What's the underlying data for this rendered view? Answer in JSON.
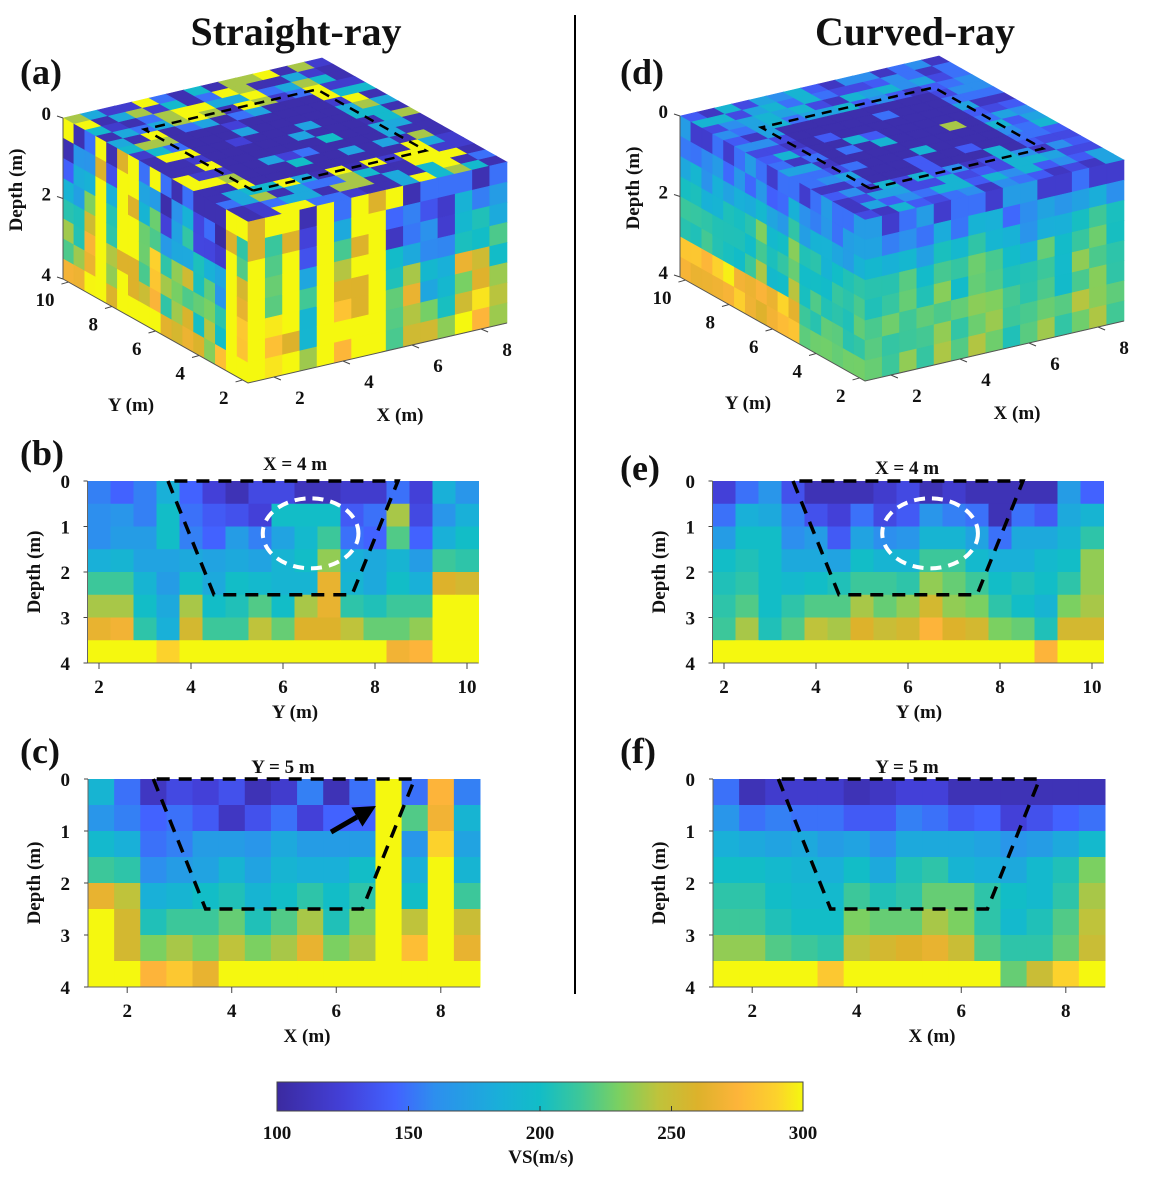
{
  "titles": {
    "left": "Straight-ray",
    "right": "Curved-ray"
  },
  "panel_labels": {
    "a": "(a)",
    "b": "(b)",
    "c": "(c)",
    "d": "(d)",
    "e": "(e)",
    "f": "(f)"
  },
  "colorbar": {
    "label": "VS(m/s)",
    "range": [
      100,
      300
    ],
    "ticks": [
      "100",
      "150",
      "200",
      "250",
      "300"
    ],
    "colors": [
      "#3b2aa0",
      "#4340d8",
      "#4262ff",
      "#2d8fee",
      "#19b0d8",
      "#12bdc7",
      "#3cc79a",
      "#7bd061",
      "#bfc33b",
      "#ddb22b",
      "#fdb43a",
      "#fcd22c",
      "#f5f80f"
    ],
    "color_values": [
      100,
      125,
      145,
      160,
      185,
      200,
      215,
      230,
      245,
      260,
      275,
      290,
      300
    ]
  },
  "chart_data": [
    {
      "id": "a",
      "type": "3d-volume",
      "method": "Straight-ray",
      "xlabel": "X (m)",
      "ylabel": "Y (m)",
      "zlabel": "Depth (m)",
      "x_ticks": [
        "2",
        "4",
        "6",
        "8"
      ],
      "y_ticks": [
        "2",
        "4",
        "6",
        "8",
        "10"
      ],
      "z_ticks": [
        "0",
        "2",
        "4"
      ],
      "xlim": [
        1.25,
        8.75
      ],
      "ylim": [
        1.75,
        10.25
      ],
      "zlim": [
        0,
        4
      ],
      "outline": {
        "x": [
          2.5,
          7.5
        ],
        "y": [
          3.5,
          8.5
        ]
      }
    },
    {
      "id": "b",
      "type": "heatmap",
      "title": "X = 4 m",
      "xlabel": "Y (m)",
      "ylabel": "Depth (m)",
      "x_ticks": [
        "2",
        "4",
        "6",
        "8",
        "10"
      ],
      "y_ticks": [
        "0",
        "1",
        "2",
        "3",
        "4"
      ],
      "xlim": [
        1.75,
        10.25
      ],
      "ylim": [
        0,
        4
      ],
      "cell": 0.5,
      "trapezoid": {
        "top": [
          3.5,
          8.5
        ],
        "bottom": [
          4.5,
          7.5
        ],
        "depth": 2.5
      },
      "ellipse": {
        "center": [
          6.6,
          1.15
        ],
        "radii": [
          1.04,
          0.77
        ]
      },
      "values": [
        [
          155,
          145,
          155,
          185,
          145,
          125,
          110,
          130,
          130,
          112,
          112,
          120,
          120,
          150,
          125,
          185,
          165
        ],
        [
          160,
          165,
          155,
          200,
          150,
          140,
          135,
          125,
          200,
          200,
          200,
          140,
          150,
          240,
          130,
          165,
          185
        ],
        [
          160,
          170,
          170,
          200,
          155,
          145,
          170,
          155,
          175,
          195,
          215,
          150,
          145,
          220,
          145,
          185,
          200
        ],
        [
          185,
          190,
          175,
          175,
          180,
          175,
          180,
          175,
          190,
          200,
          235,
          185,
          180,
          190,
          170,
          215,
          210
        ],
        [
          215,
          215,
          190,
          170,
          200,
          180,
          200,
          195,
          190,
          190,
          265,
          190,
          180,
          200,
          185,
          260,
          255
        ],
        [
          240,
          240,
          200,
          180,
          240,
          200,
          205,
          220,
          200,
          240,
          265,
          210,
          205,
          215,
          215,
          300,
          300
        ],
        [
          265,
          270,
          210,
          185,
          255,
          215,
          215,
          245,
          225,
          260,
          260,
          245,
          225,
          225,
          235,
          300,
          300
        ],
        [
          300,
          300,
          300,
          290,
          300,
          300,
          300,
          300,
          300,
          300,
          300,
          300,
          300,
          270,
          275,
          300,
          300
        ]
      ]
    },
    {
      "id": "c",
      "type": "heatmap",
      "title": "Y = 5 m",
      "xlabel": "X (m)",
      "ylabel": "Depth (m)",
      "x_ticks": [
        "2",
        "4",
        "6",
        "8"
      ],
      "y_ticks": [
        "0",
        "1",
        "2",
        "3",
        "4"
      ],
      "xlim": [
        1.25,
        8.75
      ],
      "ylim": [
        0,
        4
      ],
      "cell": 0.5,
      "trapezoid": {
        "top": [
          2.5,
          7.5
        ],
        "bottom": [
          3.5,
          6.5
        ],
        "depth": 2.5
      },
      "arrow": {
        "from": [
          5.9,
          1.02
        ],
        "to": [
          6.76,
          0.52
        ]
      },
      "values": [
        [
          190,
          150,
          115,
          130,
          125,
          135,
          110,
          120,
          155,
          110,
          150,
          300,
          150,
          275,
          155
        ],
        [
          165,
          155,
          145,
          150,
          140,
          115,
          135,
          150,
          125,
          145,
          145,
          300,
          220,
          270,
          190
        ],
        [
          195,
          185,
          150,
          155,
          170,
          170,
          165,
          180,
          170,
          170,
          170,
          300,
          165,
          290,
          175
        ],
        [
          215,
          210,
          160,
          170,
          175,
          190,
          175,
          190,
          185,
          185,
          200,
          300,
          185,
          300,
          190
        ],
        [
          265,
          245,
          185,
          190,
          200,
          205,
          190,
          200,
          210,
          200,
          210,
          300,
          200,
          300,
          215
        ],
        [
          300,
          255,
          205,
          215,
          215,
          225,
          205,
          220,
          240,
          205,
          230,
          300,
          245,
          300,
          250
        ],
        [
          300,
          255,
          230,
          240,
          230,
          245,
          230,
          240,
          265,
          230,
          240,
          300,
          280,
          300,
          265
        ],
        [
          300,
          300,
          275,
          285,
          265,
          300,
          300,
          300,
          300,
          300,
          300,
          300,
          300,
          300,
          300
        ]
      ]
    },
    {
      "id": "d",
      "type": "3d-volume",
      "method": "Curved-ray",
      "xlabel": "X (m)",
      "ylabel": "Y (m)",
      "zlabel": "Depth (m)",
      "x_ticks": [
        "2",
        "4",
        "6",
        "8"
      ],
      "y_ticks": [
        "2",
        "4",
        "6",
        "8",
        "10"
      ],
      "z_ticks": [
        "0",
        "2",
        "4"
      ],
      "xlim": [
        1.25,
        8.75
      ],
      "ylim": [
        1.75,
        10.25
      ],
      "zlim": [
        0,
        4
      ],
      "outline": {
        "x": [
          2.5,
          7.5
        ],
        "y": [
          3.5,
          8.5
        ]
      }
    },
    {
      "id": "e",
      "type": "heatmap",
      "title": "X = 4 m",
      "xlabel": "Y (m)",
      "ylabel": "Depth (m)",
      "x_ticks": [
        "2",
        "4",
        "6",
        "8",
        "10"
      ],
      "y_ticks": [
        "0",
        "1",
        "2",
        "3",
        "4"
      ],
      "xlim": [
        1.75,
        10.25
      ],
      "ylim": [
        0,
        4
      ],
      "cell": 0.5,
      "trapezoid": {
        "top": [
          3.5,
          8.5
        ],
        "bottom": [
          4.5,
          7.5
        ],
        "depth": 2.5
      },
      "ellipse": {
        "center": [
          6.48,
          1.15
        ],
        "radii": [
          1.04,
          0.77
        ]
      },
      "values": [
        [
          125,
          150,
          165,
          135,
          110,
          110,
          110,
          120,
          130,
          110,
          120,
          110,
          110,
          110,
          110,
          170,
          145
        ],
        [
          150,
          185,
          180,
          155,
          135,
          125,
          150,
          130,
          140,
          165,
          155,
          150,
          110,
          150,
          140,
          180,
          190
        ],
        [
          170,
          200,
          200,
          160,
          170,
          140,
          175,
          160,
          165,
          190,
          190,
          175,
          150,
          180,
          180,
          190,
          210
        ],
        [
          200,
          205,
          200,
          180,
          180,
          175,
          200,
          190,
          190,
          215,
          215,
          195,
          185,
          185,
          195,
          200,
          235
        ],
        [
          205,
          210,
          200,
          195,
          200,
          205,
          215,
          215,
          210,
          235,
          225,
          215,
          200,
          205,
          200,
          210,
          235
        ],
        [
          210,
          220,
          200,
          210,
          220,
          220,
          240,
          225,
          235,
          255,
          235,
          230,
          210,
          200,
          190,
          230,
          240
        ],
        [
          215,
          240,
          205,
          220,
          245,
          240,
          260,
          250,
          255,
          275,
          260,
          255,
          230,
          225,
          205,
          255,
          255
        ],
        [
          300,
          300,
          300,
          300,
          300,
          300,
          300,
          300,
          300,
          300,
          300,
          300,
          300,
          300,
          275,
          300,
          300
        ]
      ]
    },
    {
      "id": "f",
      "type": "heatmap",
      "title": "Y = 5 m",
      "xlabel": "X (m)",
      "ylabel": "Depth (m)",
      "x_ticks": [
        "2",
        "4",
        "6",
        "8"
      ],
      "y_ticks": [
        "0",
        "1",
        "2",
        "3",
        "4"
      ],
      "xlim": [
        1.25,
        8.75
      ],
      "ylim": [
        0,
        4
      ],
      "cell": 0.5,
      "trapezoid": {
        "top": [
          2.5,
          7.5
        ],
        "bottom": [
          3.5,
          6.5
        ],
        "depth": 2.5
      },
      "values": [
        [
          150,
          110,
          120,
          120,
          120,
          110,
          115,
          125,
          125,
          110,
          110,
          110,
          110,
          110,
          110
        ],
        [
          165,
          150,
          155,
          150,
          150,
          140,
          140,
          155,
          150,
          140,
          145,
          125,
          135,
          145,
          150
        ],
        [
          185,
          180,
          175,
          180,
          170,
          175,
          160,
          180,
          180,
          180,
          175,
          165,
          170,
          180,
          195
        ],
        [
          200,
          200,
          195,
          190,
          185,
          200,
          180,
          205,
          210,
          190,
          185,
          180,
          195,
          205,
          230
        ],
        [
          210,
          210,
          200,
          195,
          195,
          215,
          205,
          210,
          225,
          225,
          210,
          200,
          195,
          210,
          240
        ],
        [
          215,
          215,
          205,
          200,
          200,
          230,
          225,
          225,
          240,
          230,
          210,
          195,
          205,
          220,
          245
        ],
        [
          235,
          235,
          220,
          215,
          210,
          245,
          255,
          260,
          265,
          250,
          220,
          210,
          210,
          225,
          250
        ],
        [
          300,
          300,
          300,
          300,
          285,
          300,
          300,
          300,
          300,
          300,
          300,
          225,
          250,
          290,
          300
        ]
      ]
    }
  ]
}
